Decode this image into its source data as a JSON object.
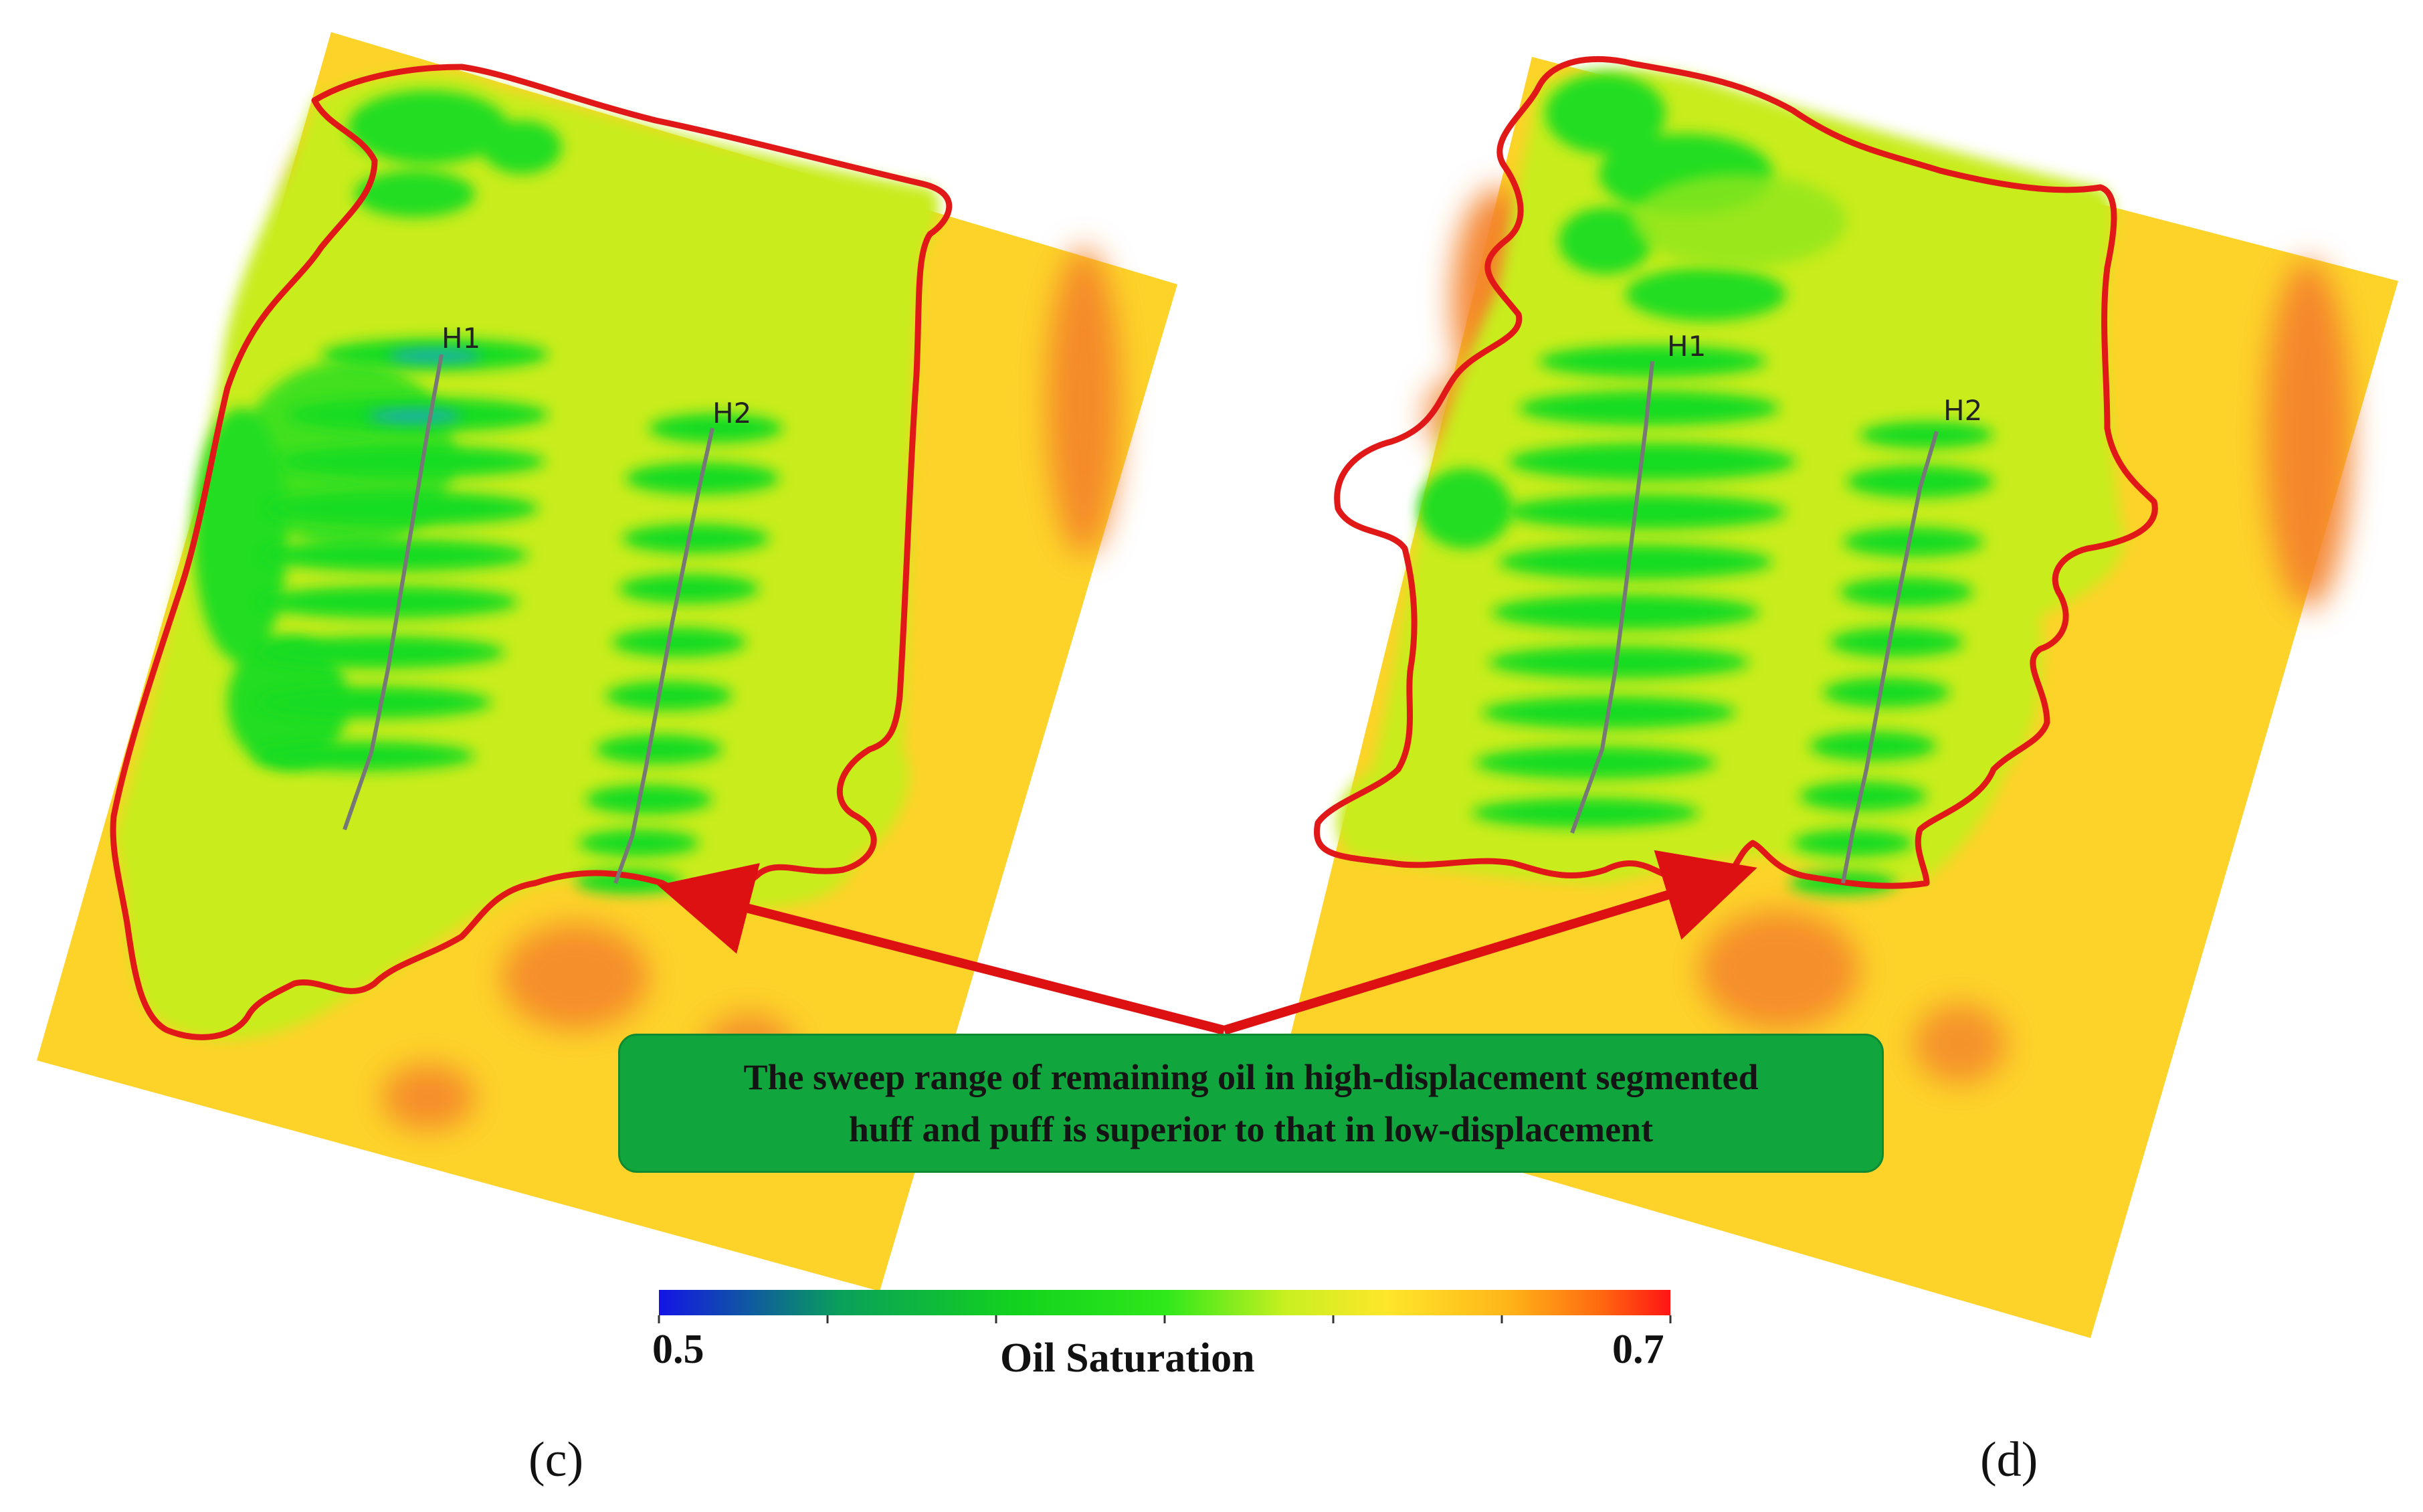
{
  "panels": [
    {
      "id": "c",
      "label": "(c)",
      "wells": [
        "H1",
        "H2"
      ]
    },
    {
      "id": "d",
      "label": "(d)",
      "wells": [
        "H1",
        "H2"
      ]
    }
  ],
  "annotation": {
    "text_line1": "The sweep range of remaining oil in high-displacement segmented",
    "text_line2": "huff and puff is superior to that in low-displacement"
  },
  "colorbar": {
    "title": "Oil Saturation",
    "min_label": "0.5",
    "max_label": "0.7",
    "min": 0.5,
    "max": 0.7,
    "stops": [
      "#1414e6",
      "#0aa05a",
      "#12d21e",
      "#2ee81a",
      "#c8f020",
      "#ffe62a",
      "#ffb418",
      "#ff6a10",
      "#ff1414"
    ]
  },
  "colors": {
    "outline": "#e01818",
    "arrow": "#dd1111",
    "callout_bg": "#11a63d",
    "low_sat": "#22dd22",
    "mid_sat": "#c8ec1e",
    "high_sat": "#fdd32a",
    "max_sat": "#f3832a"
  }
}
